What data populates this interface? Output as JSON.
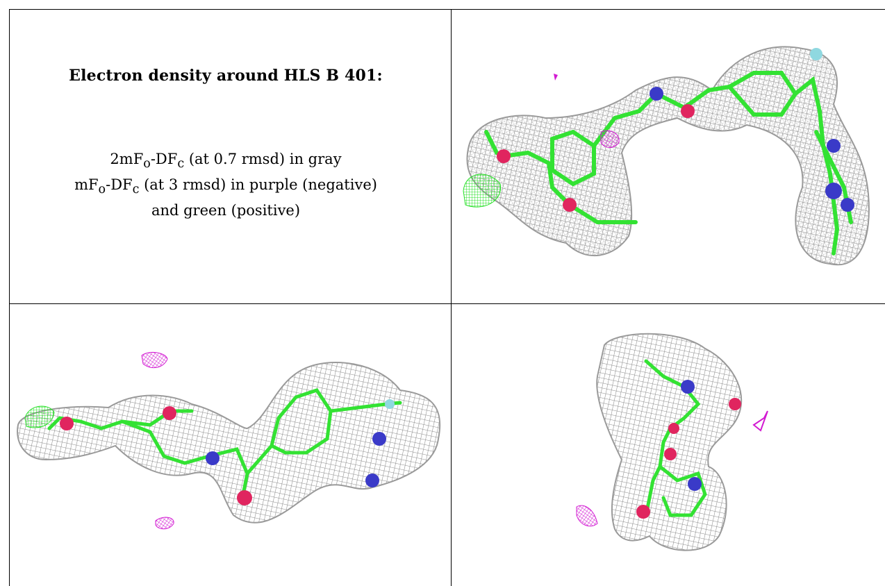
{
  "caption": {
    "title": "Electron density around HLS B 401:",
    "line1": {
      "pre": "2mF",
      "sub1": "o",
      "mid": "-DF",
      "sub2": "c",
      "post": " (at 0.7 rmsd) in gray"
    },
    "line2": {
      "pre": "mF",
      "sub1": "o",
      "mid": "-DF",
      "sub2": "c",
      "post": " (at 3 rmsd) in purple (negative)"
    },
    "line3": "and green (positive)"
  },
  "colors": {
    "mesh": "#8c8c8c",
    "carbon": "#33e233",
    "oxygen": "#e0255f",
    "nitrogen": "#3a3ac8",
    "fluorine": "#8fd8e0",
    "negative": "#d21ad2",
    "positive": "#28e028"
  },
  "panels": [
    "view-1",
    "view-2",
    "view-3"
  ]
}
